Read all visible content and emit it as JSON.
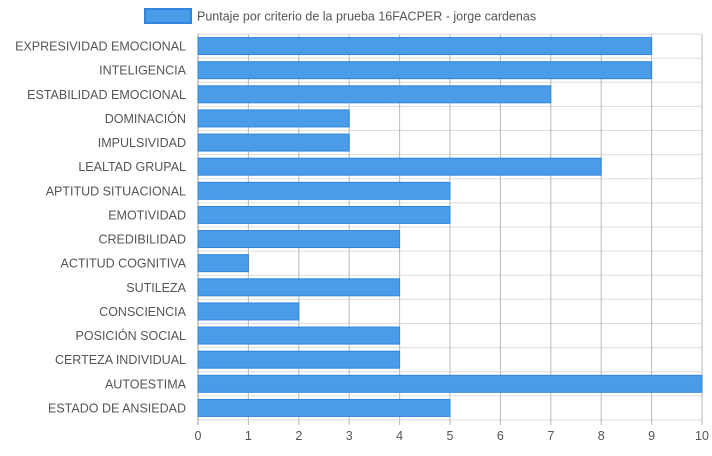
{
  "chart_data": {
    "type": "bar",
    "orientation": "horizontal",
    "categories": [
      "EXPRESIVIDAD EMOCIONAL",
      "INTELIGENCIA",
      "ESTABILIDAD EMOCIONAL",
      "DOMINACIÓN",
      "IMPULSIVIDAD",
      "LEALTAD GRUPAL",
      "APTITUD SITUACIONAL",
      "EMOTIVIDAD",
      "CREDIBILIDAD",
      "ACTITUD COGNITIVA",
      "SUTILEZA",
      "CONSCIENCIA",
      "POSICIÓN SOCIAL",
      "CERTEZA INDIVIDUAL",
      "AUTOESTIMA",
      "ESTADO DE ANSIEDAD"
    ],
    "series": [
      {
        "name": "Puntaje por criterio de la prueba 16FACPER - jorge cardenas",
        "values": [
          9,
          9,
          7,
          3,
          3,
          8,
          5,
          5,
          4,
          1,
          4,
          2,
          4,
          4,
          10,
          5
        ]
      }
    ],
    "xlim": [
      0,
      10
    ],
    "x_ticks": [
      "0",
      "1",
      "2",
      "3",
      "4",
      "5",
      "6",
      "7",
      "8",
      "9",
      "10"
    ],
    "grid": true,
    "legend_position": "top",
    "colors": {
      "bar_fill": "#4a9ce8",
      "bar_border": "#2f86dc",
      "grid": "#dddddd",
      "vertical_grid": "#bbbbbb",
      "text": "#555555"
    }
  }
}
